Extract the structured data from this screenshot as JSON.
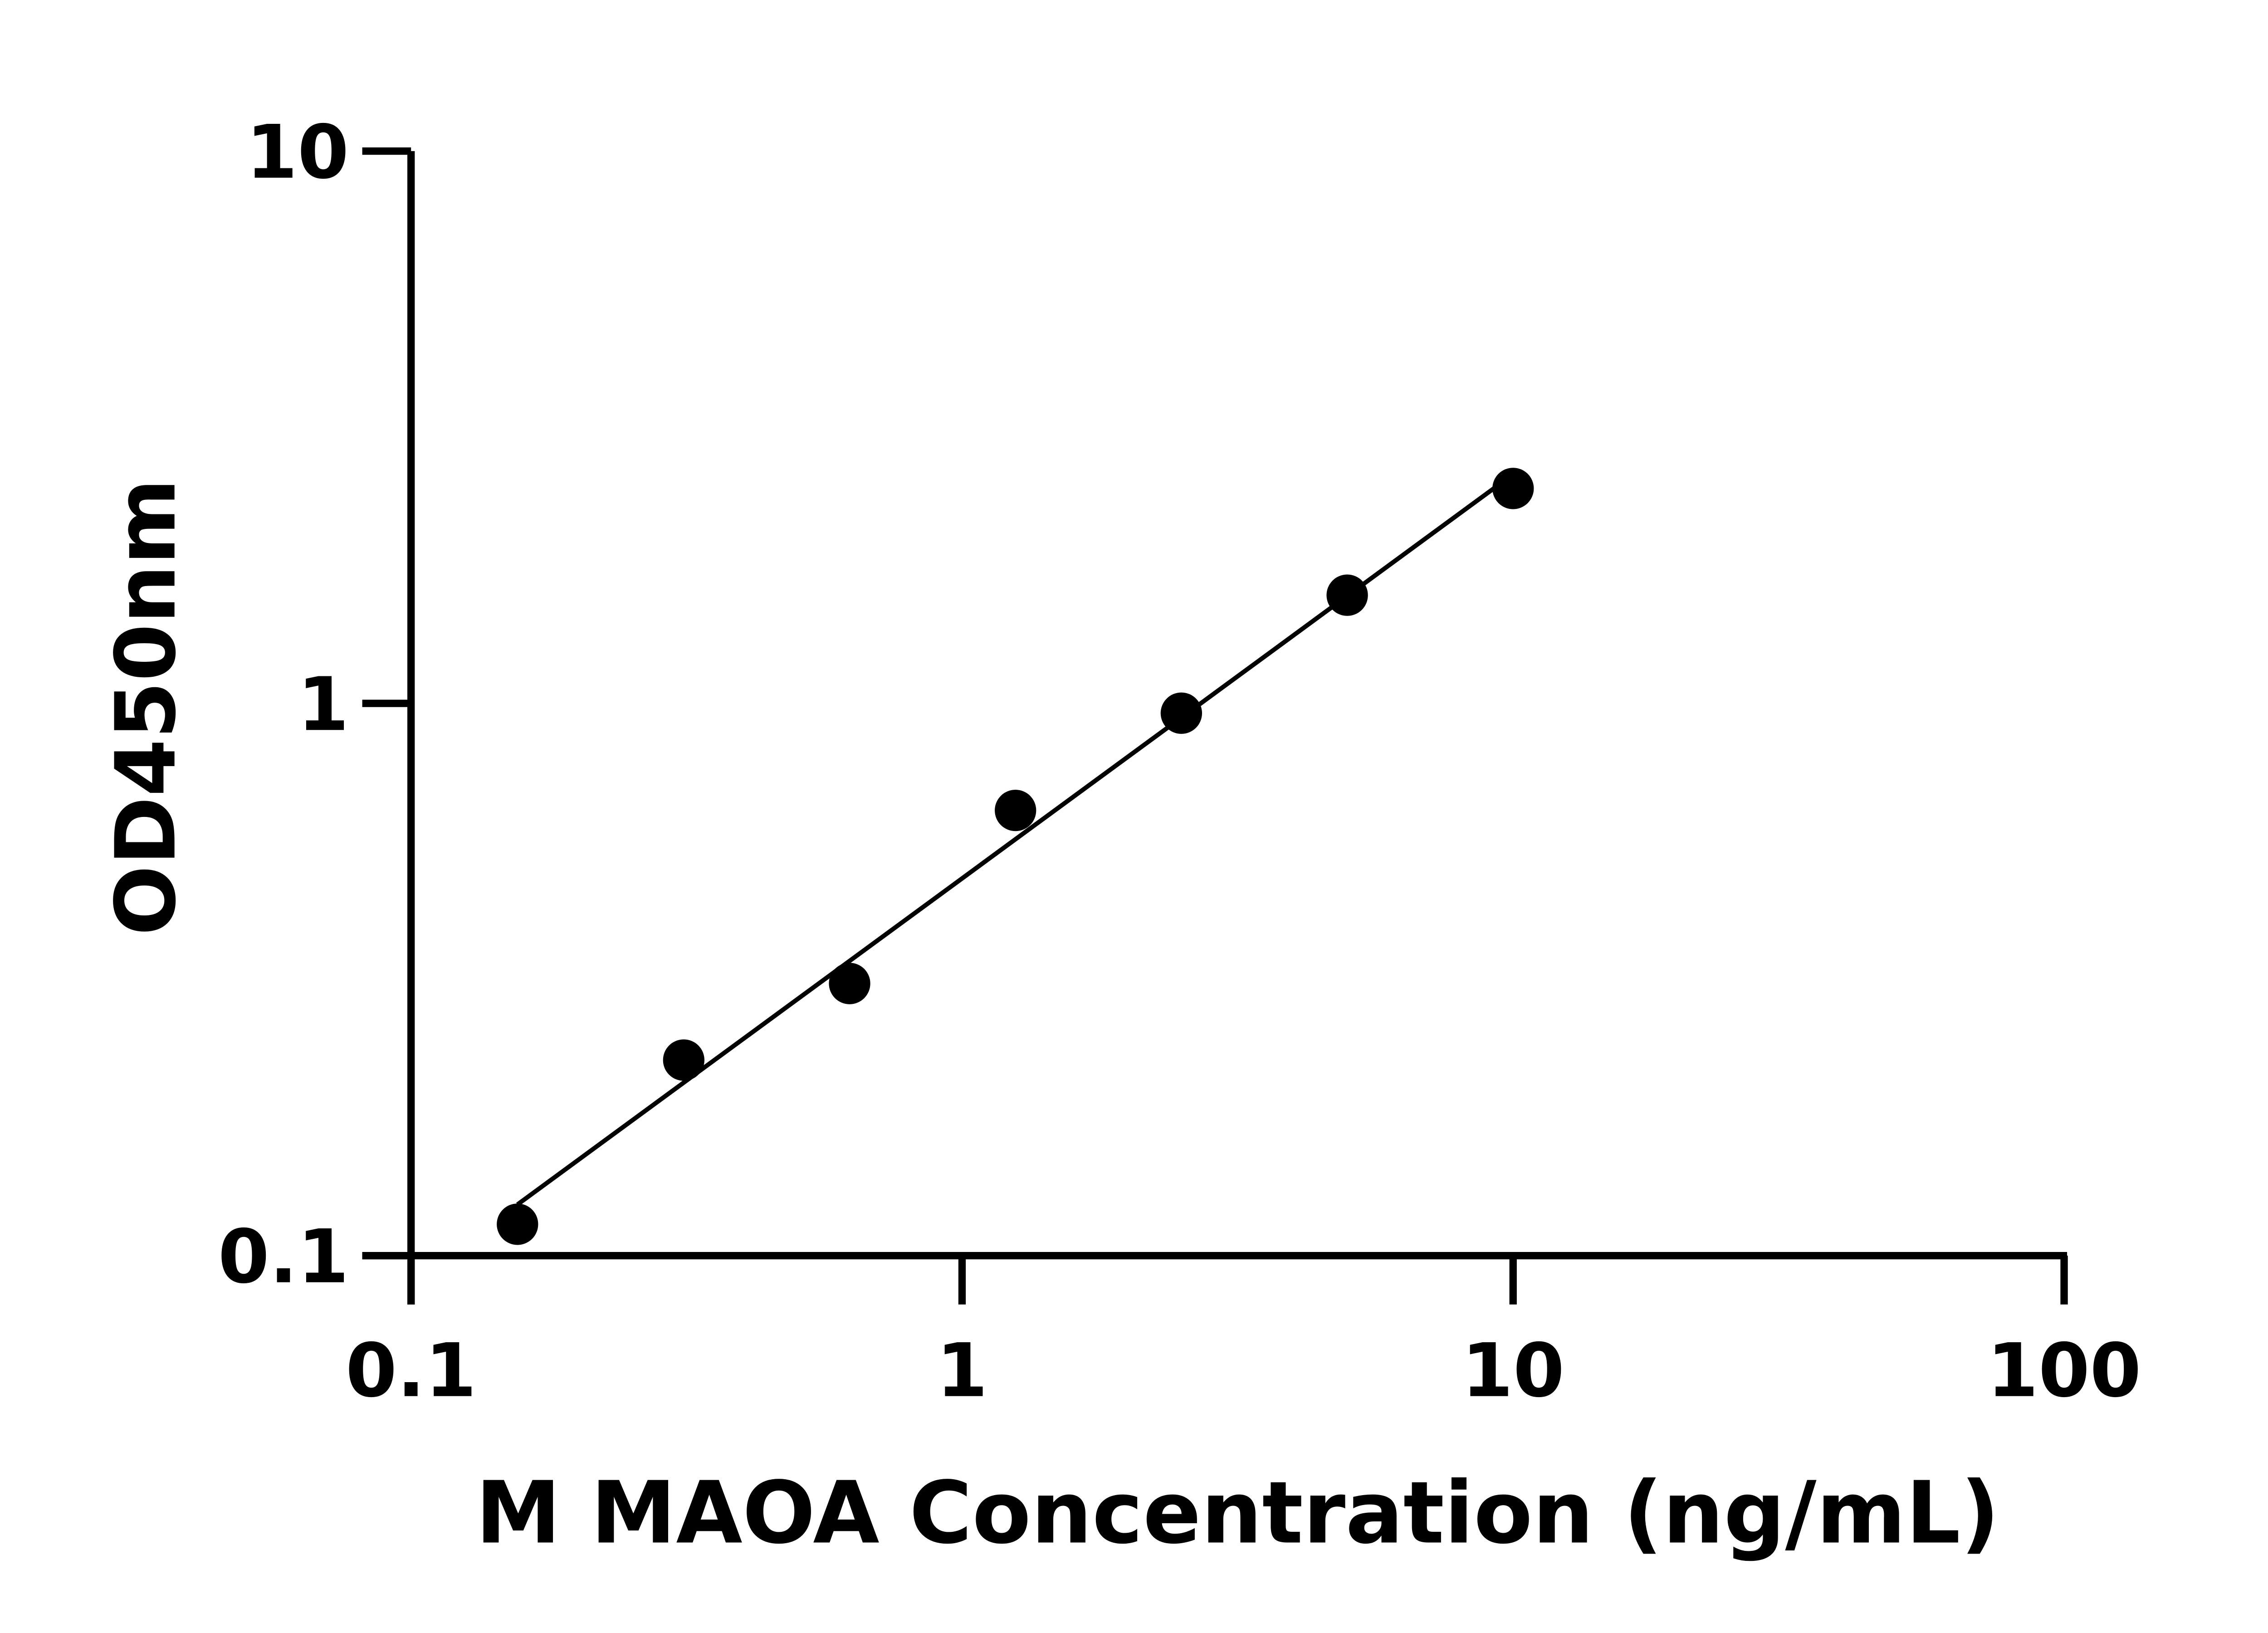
{
  "chart_data": {
    "type": "scatter",
    "title": "",
    "xlabel": "M MAOA Concentration (ng/mL)",
    "ylabel": "OD450nm",
    "x_scale": "log",
    "y_scale": "log",
    "xlim": [
      0.1,
      100
    ],
    "ylim": [
      0.1,
      10
    ],
    "x_ticks": [
      "0.1",
      "1",
      "10",
      "100"
    ],
    "y_ticks": [
      "0.1",
      "1",
      "10"
    ],
    "grid": false,
    "fit_line": "log-log linear",
    "colors": {
      "points": "#000000",
      "line": "#000000"
    },
    "points": [
      {
        "x": 0.156,
        "y": 0.114
      },
      {
        "x": 0.3125,
        "y": 0.226
      },
      {
        "x": 0.625,
        "y": 0.311
      },
      {
        "x": 1.25,
        "y": 0.64
      },
      {
        "x": 2.5,
        "y": 0.96
      },
      {
        "x": 5,
        "y": 1.57
      },
      {
        "x": 10,
        "y": 2.45
      }
    ]
  }
}
